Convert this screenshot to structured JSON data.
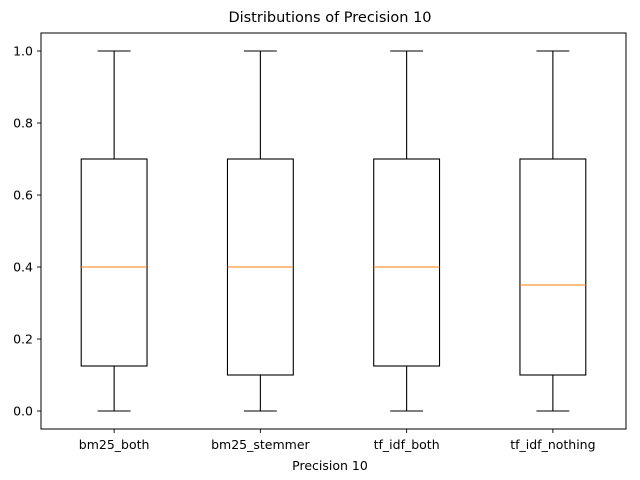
{
  "chart_data": {
    "type": "box",
    "title": "Distributions of Precision 10",
    "xlabel": "Precision 10",
    "ylabel": "",
    "ylim": [
      -0.05,
      1.05
    ],
    "yticks": [
      0.0,
      0.2,
      0.4,
      0.6,
      0.8,
      1.0
    ],
    "ytick_labels": [
      "0.0",
      "0.2",
      "0.4",
      "0.6",
      "0.8",
      "1.0"
    ],
    "categories": [
      "bm25_both",
      "bm25_stemmer",
      "tf_idf_both",
      "tf_idf_nothing"
    ],
    "series": [
      {
        "category": "bm25_both",
        "whisker_low": 0.0,
        "q1": 0.125,
        "median": 0.4,
        "q3": 0.7,
        "whisker_high": 1.0
      },
      {
        "category": "bm25_stemmer",
        "whisker_low": 0.0,
        "q1": 0.1,
        "median": 0.4,
        "q3": 0.7,
        "whisker_high": 1.0
      },
      {
        "category": "tf_idf_both",
        "whisker_low": 0.0,
        "q1": 0.125,
        "median": 0.4,
        "q3": 0.7,
        "whisker_high": 1.0
      },
      {
        "category": "tf_idf_nothing",
        "whisker_low": 0.0,
        "q1": 0.1,
        "median": 0.35,
        "q3": 0.7,
        "whisker_high": 1.0
      }
    ],
    "grid": false,
    "colors": {
      "box": "#000000",
      "median": "#ff7f0e",
      "axes": "#000000"
    }
  }
}
